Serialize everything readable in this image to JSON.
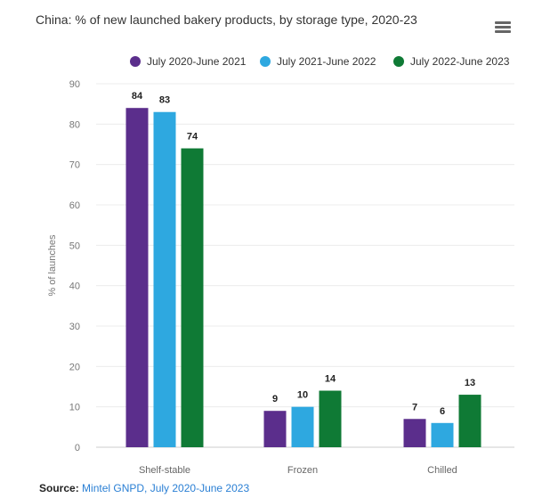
{
  "chart_data": {
    "type": "bar",
    "title": "China: % of new launched bakery products, by storage type, 2020-23",
    "xlabel": "",
    "ylabel": "% of launches",
    "ylim": [
      0,
      90
    ],
    "yticks": [
      0,
      10,
      20,
      30,
      40,
      50,
      60,
      70,
      80,
      90
    ],
    "grid": true,
    "legend_position": "top-right",
    "categories": [
      "Shelf-stable",
      "Frozen",
      "Chilled"
    ],
    "series": [
      {
        "name": "July 2020-June 2021",
        "color": "#5b2e8c",
        "values": [
          84,
          9,
          7
        ]
      },
      {
        "name": "July 2021-June 2022",
        "color": "#2ea8e0",
        "values": [
          83,
          10,
          6
        ]
      },
      {
        "name": "July 2022-June 2023",
        "color": "#0f7a35",
        "values": [
          74,
          14,
          13
        ]
      }
    ]
  },
  "menu_icon": "hamburger-menu-icon",
  "source": {
    "label": "Source",
    "text": "Mintel GNPD, July 2020-June 2023"
  }
}
